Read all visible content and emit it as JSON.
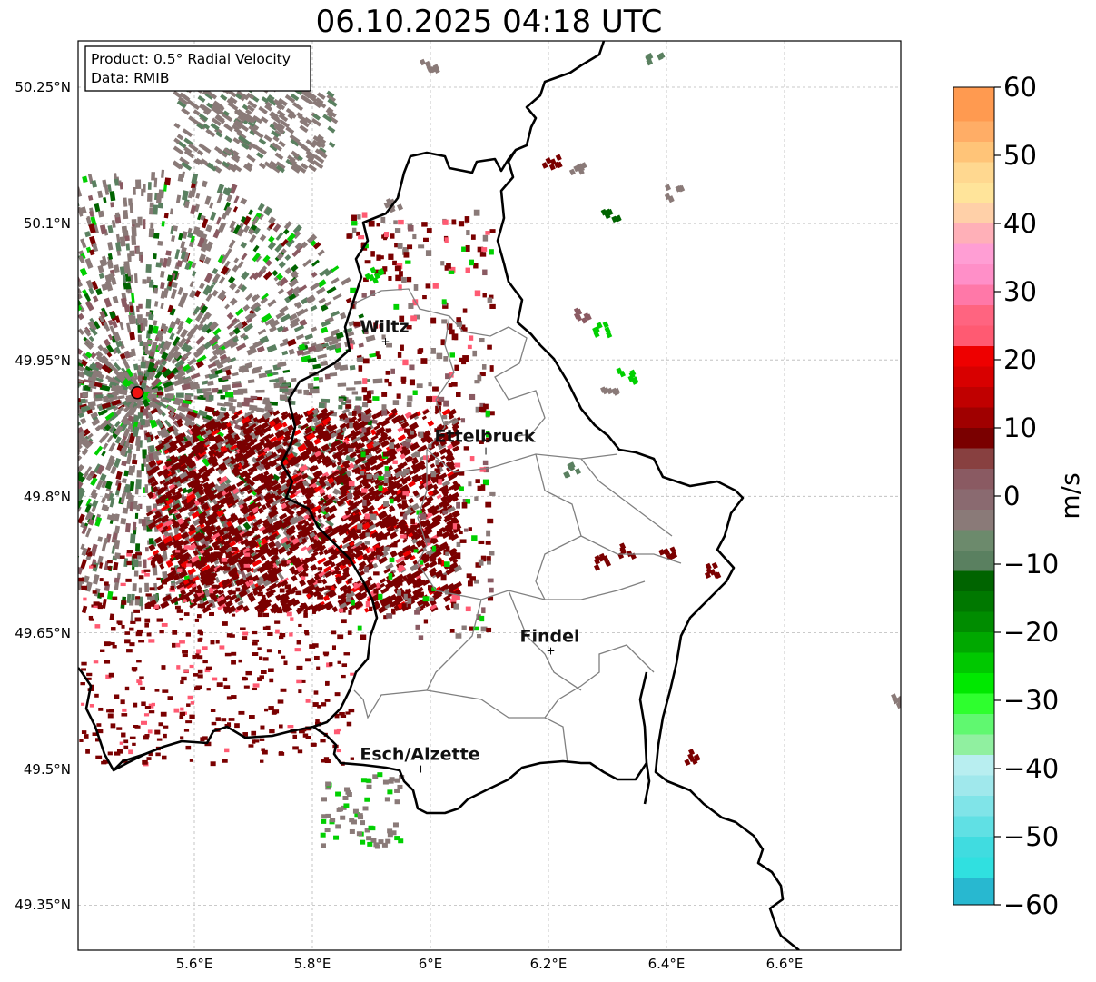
{
  "title": "06.10.2025 04:18 UTC",
  "info_box": {
    "product": "Product: 0.5° Radial Velocity",
    "source": "Data: RMIB"
  },
  "axes": {
    "lat_labels": [
      "50.25°N",
      "50.1°N",
      "49.95°N",
      "49.8°N",
      "49.65°N",
      "49.5°N",
      "49.35°N"
    ],
    "lon_labels": [
      "5.6°E",
      "5.8°E",
      "6°E",
      "6.2°E",
      "6.4°E",
      "6.6°E"
    ]
  },
  "cities": [
    {
      "name": "Wiltz",
      "lon": 5.93,
      "lat": 49.97
    },
    {
      "name": "Ettelbruck",
      "lon": 6.1,
      "lat": 49.85
    },
    {
      "name": "Findel",
      "lon": 6.21,
      "lat": 49.63
    },
    {
      "name": "Esch/Alzette",
      "lon": 5.99,
      "lat": 49.5
    }
  ],
  "radar_site": {
    "name": "radar-site",
    "lon": 5.505,
    "lat": 49.914
  },
  "colorbar": {
    "label": "m/s",
    "min": -60,
    "max": 60,
    "ticks": [
      "60",
      "50",
      "40",
      "30",
      "20",
      "10",
      "0",
      "−10",
      "−20",
      "−30",
      "−40",
      "−50",
      "−60"
    ],
    "colors": {
      "high": "#ff9a50",
      "orange": "#ffc478",
      "yellow": "#ffe49a",
      "pink": "#ff8fc8",
      "rose": "#ff5a72",
      "red": "#ee0000",
      "darkred": "#7a0000",
      "brown": "#8a5a62",
      "gray": "#8a7a78",
      "graygreen": "#5a8060",
      "darkgreen": "#006400",
      "green": "#00d000",
      "lime": "#2eff2e",
      "lightgreen": "#90f0a0",
      "paleblue": "#b8eef0",
      "cyan": "#30e0e0",
      "blue": "#2080c0"
    }
  }
}
